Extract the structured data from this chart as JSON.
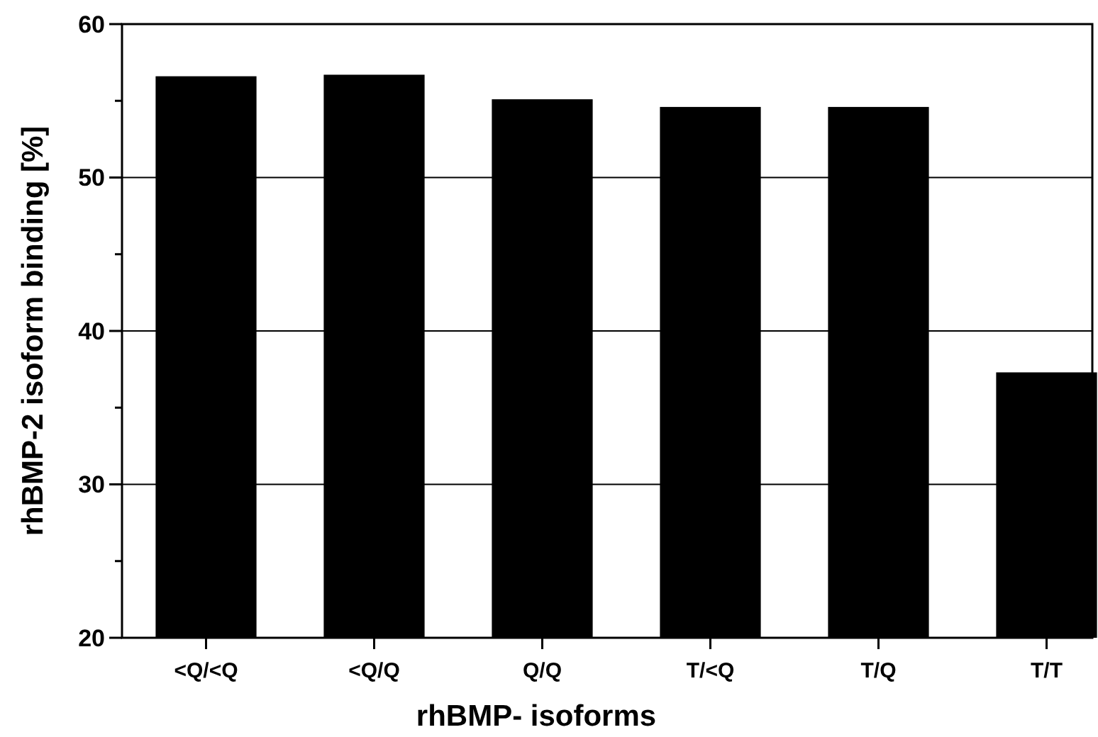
{
  "chart_data": {
    "type": "bar",
    "xlabel": "rhBMP- isoforms",
    "ylabel": "rhBMP-2 isoform binding [%]",
    "categories": [
      "<Q/<Q",
      "<Q/Q",
      "Q/Q",
      "T/<Q",
      "T/Q",
      "T/T"
    ],
    "values": [
      56.6,
      56.7,
      55.1,
      54.6,
      54.6,
      37.3
    ],
    "color": "#000000",
    "ylim": [
      20,
      60
    ],
    "yticks": [
      20,
      {
        "value": 25,
        "label": null
      },
      30,
      {
        "value": 35,
        "label": null
      },
      40,
      {
        "value": 45,
        "label": null
      },
      50,
      {
        "value": 55,
        "label": null
      },
      60
    ],
    "grid": "y"
  }
}
